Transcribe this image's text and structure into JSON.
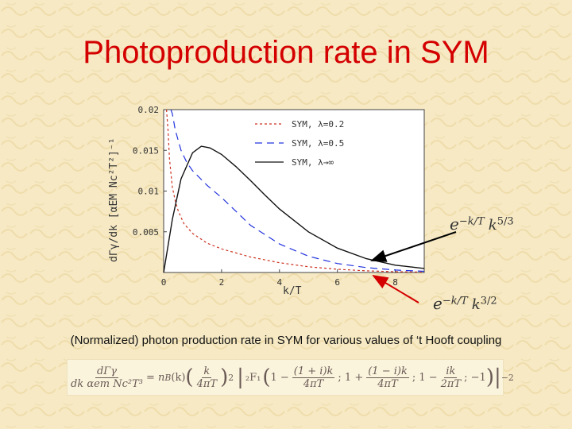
{
  "slide": {
    "title": "Photoproduction rate in SYM",
    "caption": "(Normalized) photon production rate in SYM for various values of ‘t Hooft coupling",
    "annotations": {
      "upper": {
        "base": "e",
        "exp": "−k/T",
        "mid": "k",
        "pow": "5/3"
      },
      "lower": {
        "base": "e",
        "exp": "−k/T",
        "mid": "k",
        "pow": "3/2"
      }
    },
    "formula": {
      "lhs_num": "dΓγ",
      "lhs_den": "dk αem Nc²T³",
      "eq": "= n",
      "nb_sub": "B",
      "nb_arg": "(k)",
      "k1_num": "k",
      "k1_den": "4πT",
      "sq": "2",
      "f21": "₂F₁",
      "arg1": "1 −",
      "t1_num": "(1 + i)k",
      "t1_den": "4πT",
      "arg2": "; 1 +",
      "t2_num": "(1 − i)k",
      "t2_den": "4πT",
      "arg3": "; 1 −",
      "t3_num": "ik",
      "t3_den": "2πT",
      "arg4": "; −1",
      "pow": "−2"
    },
    "colors": {
      "title": "#d40000",
      "background": "#f6e9c4",
      "arrow_upper": "#000000",
      "arrow_lower": "#d40000"
    }
  },
  "chart_data": {
    "type": "line",
    "xlabel": "k/T",
    "ylabel": "dΓγ/dk [αEM Nc²T²]⁻¹",
    "xlim": [
      0,
      9
    ],
    "ylim": [
      0,
      0.02
    ],
    "xticks": [
      "0",
      "2",
      "4",
      "6",
      "8"
    ],
    "yticks": [
      "0.005",
      "0.01",
      "0.015",
      "0.02"
    ],
    "legend_position": "top-right",
    "grid": false,
    "series": [
      {
        "name": "SYM, λ=0.2",
        "style": "dotted",
        "color": "#cc3322",
        "x": [
          0.1,
          0.15,
          0.2,
          0.3,
          0.4,
          0.5,
          0.7,
          1,
          1.5,
          2,
          3,
          4,
          5,
          6,
          7,
          8,
          9
        ],
        "y": [
          0.02,
          0.0175,
          0.014,
          0.0105,
          0.0088,
          0.0076,
          0.006,
          0.0048,
          0.0036,
          0.0029,
          0.0019,
          0.0012,
          0.0007,
          0.0004,
          0.0002,
          0.0001,
          5e-05
        ]
      },
      {
        "name": "SYM, λ=0.5",
        "style": "dashed",
        "color": "#2233dd",
        "x": [
          0.25,
          0.3,
          0.4,
          0.6,
          0.8,
          1,
          1.5,
          2,
          2.5,
          3,
          4,
          5,
          6,
          7,
          8,
          9
        ],
        "y": [
          0.02,
          0.0195,
          0.0175,
          0.015,
          0.0135,
          0.0125,
          0.0107,
          0.0092,
          0.0075,
          0.0058,
          0.0035,
          0.002,
          0.0011,
          0.0006,
          0.0003,
          0.00015
        ]
      },
      {
        "name": "SYM, λ→∞",
        "style": "solid",
        "color": "#111111",
        "x": [
          0,
          0.3,
          0.6,
          1,
          1.3,
          1.6,
          2,
          2.5,
          3,
          3.5,
          4,
          5,
          6,
          7,
          8,
          9
        ],
        "y": [
          0,
          0.0065,
          0.0115,
          0.0147,
          0.0155,
          0.0153,
          0.0145,
          0.013,
          0.0113,
          0.0095,
          0.0078,
          0.005,
          0.003,
          0.0017,
          0.0009,
          0.0005
        ]
      }
    ]
  }
}
